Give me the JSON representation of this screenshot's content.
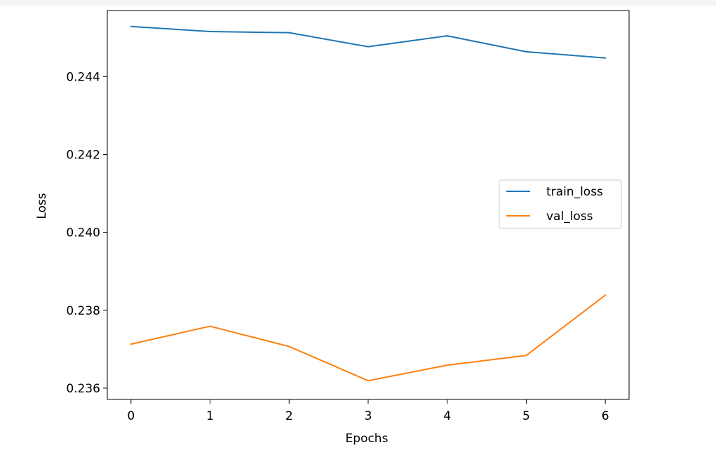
{
  "chart_data": {
    "type": "line",
    "xlabel": "Epochs",
    "ylabel": "Loss",
    "x": [
      0,
      1,
      2,
      3,
      4,
      5,
      6
    ],
    "xlim": [
      -0.3,
      6.3
    ],
    "ylim": [
      0.23571,
      0.2457
    ],
    "x_ticks": [
      0,
      1,
      2,
      3,
      4,
      5,
      6
    ],
    "y_ticks": [
      0.236,
      0.238,
      0.24,
      0.242,
      0.244
    ],
    "y_tick_labels": [
      "0.236",
      "0.238",
      "0.240",
      "0.242",
      "0.244"
    ],
    "series": [
      {
        "name": "train_loss",
        "color": "#1f77b4",
        "values": [
          0.24529,
          0.24516,
          0.24513,
          0.24477,
          0.24505,
          0.24464,
          0.24448
        ]
      },
      {
        "name": "val_loss",
        "color": "#ff7f0e",
        "values": [
          0.23713,
          0.23759,
          0.23707,
          0.23619,
          0.23659,
          0.23684,
          0.23839
        ]
      }
    ],
    "legend_position": "center-right",
    "grid": false
  }
}
